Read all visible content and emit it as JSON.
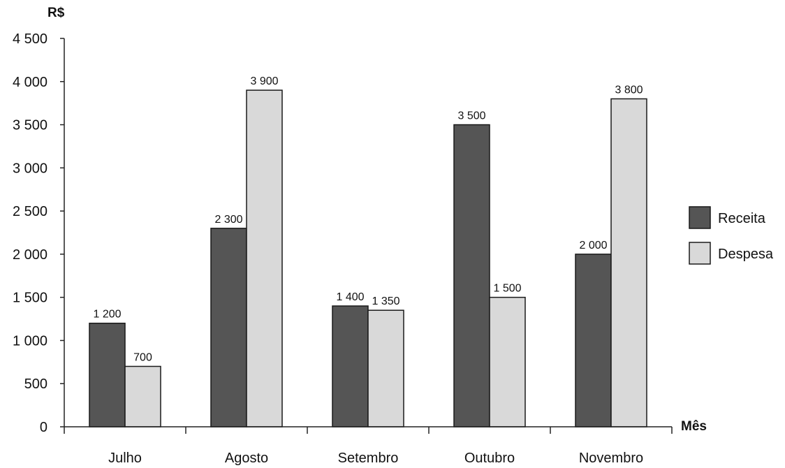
{
  "chart_data": {
    "type": "bar",
    "ylabel": "R$",
    "xlabel": "Mês",
    "categories": [
      "Julho",
      "Agosto",
      "Setembro",
      "Outubro",
      "Novembro"
    ],
    "series": [
      {
        "name": "Receita",
        "values": [
          1200,
          2300,
          1400,
          3500,
          2000
        ],
        "value_labels": [
          "1 200",
          "2 300",
          "1 400",
          "3 500",
          "2 000"
        ],
        "color": "#555555"
      },
      {
        "name": "Despesa",
        "values": [
          700,
          3900,
          1350,
          1500,
          3800
        ],
        "value_labels": [
          "700",
          "3 900",
          "1 350",
          "1 500",
          "3 800"
        ],
        "color": "#d9d9d9"
      }
    ],
    "ylim": [
      0,
      4500
    ],
    "yticks": [
      0,
      500,
      1000,
      1500,
      2000,
      2500,
      3000,
      3500,
      4000,
      4500
    ],
    "ytick_labels": [
      "0",
      "500",
      "1 000",
      "1 500",
      "2 000",
      "2 500",
      "3 000",
      "3 500",
      "4 000",
      "4 500"
    ],
    "grid": false,
    "legend_position": "right"
  }
}
